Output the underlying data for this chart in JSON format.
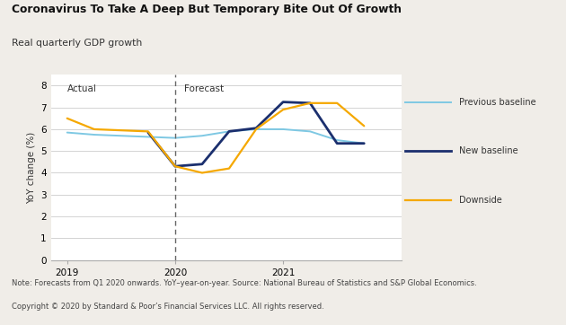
{
  "title": "Coronavirus To Take A Deep But Temporary Bite Out Of Growth",
  "subtitle": "Real quarterly GDP growth",
  "ylabel": "YoY change (%)",
  "note_line1": "Note: Forecasts from Q1 2020 onwards. YoY–year-on-year. Source: National Bureau of Statistics and S&P Global Economics.",
  "note_line2": "Copyright © 2020 by Standard & Poor’s Financial Services LLC. All rights reserved.",
  "actual_label": "Actual",
  "forecast_label": "Forecast",
  "ylim": [
    0,
    8.5
  ],
  "yticks": [
    0,
    1,
    2,
    3,
    4,
    5,
    6,
    7,
    8
  ],
  "background_color": "#f0ede8",
  "plot_bg_color": "#ffffff",
  "header_bg_color": "#ffffff",
  "series": {
    "previous_baseline": {
      "label": "Previous baseline",
      "color": "#7ec8e3",
      "x": [
        2019.0,
        2019.25,
        2019.5,
        2019.75,
        2020.0,
        2020.25,
        2020.5,
        2020.75,
        2021.0,
        2021.25,
        2021.5,
        2021.75
      ],
      "y": [
        5.85,
        5.75,
        5.7,
        5.65,
        5.6,
        5.7,
        5.9,
        6.0,
        6.0,
        5.9,
        5.5,
        5.35
      ]
    },
    "new_baseline": {
      "label": "New baseline",
      "color": "#1b2f6e",
      "x": [
        2019.75,
        2020.0,
        2020.25,
        2020.5,
        2020.75,
        2021.0,
        2021.25,
        2021.5,
        2021.75
      ],
      "y": [
        5.85,
        4.3,
        4.4,
        5.9,
        6.05,
        7.25,
        7.2,
        5.35,
        5.35
      ]
    },
    "downside": {
      "label": "Downside",
      "color": "#f5a800",
      "x": [
        2019.0,
        2019.25,
        2019.5,
        2019.75,
        2020.0,
        2020.25,
        2020.5,
        2020.75,
        2021.0,
        2021.25,
        2021.5,
        2021.75
      ],
      "y": [
        6.5,
        6.0,
        5.95,
        5.9,
        4.3,
        4.0,
        4.2,
        6.0,
        6.9,
        7.2,
        7.2,
        6.15
      ]
    }
  },
  "dashed_line_x": 2020.0,
  "xticks": [
    2019.0,
    2020.0,
    2021.0
  ],
  "xticklabels": [
    "2019",
    "2020",
    "2021"
  ],
  "xlim": [
    2018.85,
    2022.1
  ]
}
